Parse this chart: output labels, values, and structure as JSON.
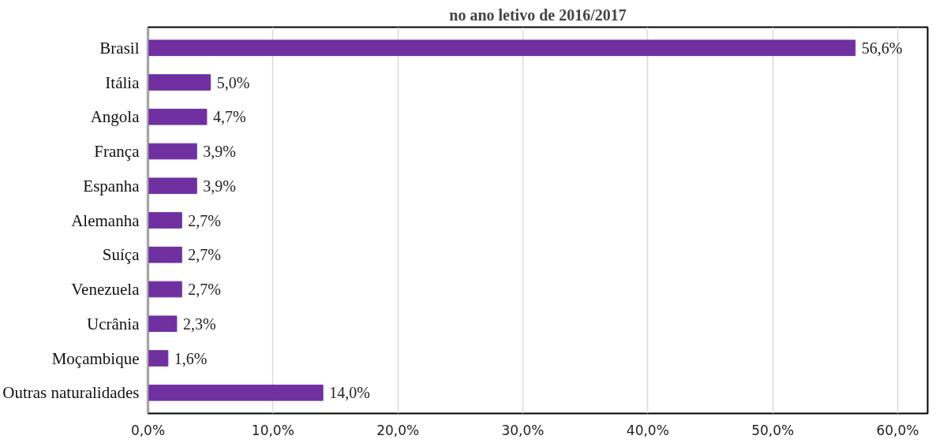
{
  "chart_data": {
    "type": "bar",
    "orientation": "horizontal",
    "title": "no ano letivo de 2016/2017",
    "categories": [
      "Brasil",
      "Itália",
      "Angola",
      "França",
      "Espanha",
      "Alemanha",
      "Suíça",
      "Venezuela",
      "Ucrânia",
      "Moçambique",
      "Outras naturalidades"
    ],
    "values": [
      56.6,
      5.0,
      4.7,
      3.9,
      3.9,
      2.7,
      2.7,
      2.7,
      2.3,
      1.6,
      14.0
    ],
    "value_labels": [
      "56,6%",
      "5,0%",
      "4,7%",
      "3,9%",
      "3,9%",
      "2,7%",
      "2,7%",
      "2,7%",
      "2,3%",
      "1,6%",
      "14,0%"
    ],
    "color": "#7030a0",
    "xlim": [
      0,
      60
    ],
    "xticks": [
      {
        "value": 0,
        "label": "0,0%"
      },
      {
        "value": 10,
        "label": "10,0%"
      },
      {
        "value": 20,
        "label": "20,0%"
      },
      {
        "value": 30,
        "label": "30,0%"
      },
      {
        "value": 40,
        "label": "40,0%"
      },
      {
        "value": 50,
        "label": "50,0%"
      },
      {
        "value": 60,
        "label": "60,0%"
      }
    ],
    "grid": "x"
  }
}
